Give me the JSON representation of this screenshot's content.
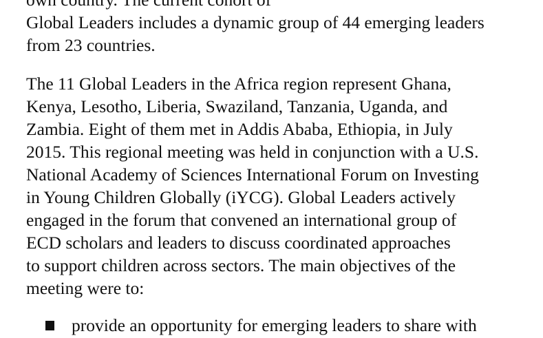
{
  "paragraphs": [
    {
      "lines": [
        "own country.  The current cohort of",
        "Global Leaders includes a dynamic group of 44 emerging leaders",
        "from 23 countries."
      ]
    },
    {
      "lines": [
        "The 11 Global Leaders in the Africa region represent Ghana,",
        "Kenya, Lesotho, Liberia, Swaziland, Tanzania, Uganda, and",
        "Zambia.  Eight of them met in Addis Ababa, Ethiopia, in July",
        "2015.  This regional meeting was held in conjunction with a U.S.",
        "National Academy of Sciences International Forum on Investing",
        "in Young Children Globally (iYCG).  Global Leaders actively",
        "engaged in the forum that convened an international group of",
        "ECD scholars and leaders to discuss coordinated approaches",
        "to support children across sectors.  The main objectives of the",
        "meeting were to:"
      ]
    }
  ],
  "bullets": [
    {
      "icon": "square-bullet-icon",
      "text": "provide an opportunity for emerging leaders to share with"
    }
  ]
}
